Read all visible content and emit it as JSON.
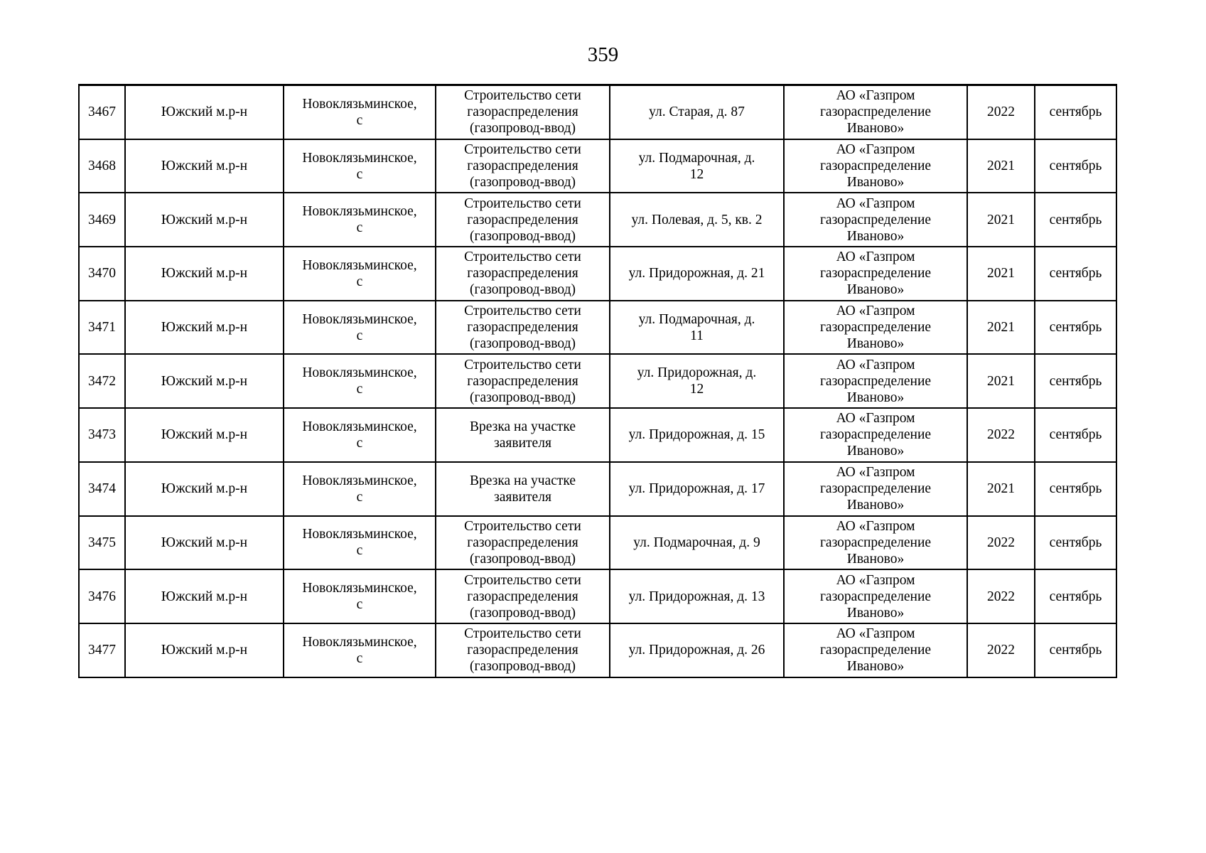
{
  "page": {
    "number": "359"
  },
  "colors": {
    "background": "#ffffff",
    "text": "#000000",
    "table_border": "#000000"
  },
  "table": {
    "rows": [
      {
        "num": "3467",
        "district": "Южский м.р-н",
        "settlement": "Новоклязьминское,\nс",
        "work": "Строительство сети\nгазораспределения\n(газопровод-ввод)",
        "address": "ул. Старая, д. 87",
        "org": "АО «Газпром\nгазораспределение\nИваново»",
        "year": "2022",
        "month": "сентябрь"
      },
      {
        "num": "3468",
        "district": "Южский м.р-н",
        "settlement": "Новоклязьминское,\nс",
        "work": "Строительство сети\nгазораспределения\n(газопровод-ввод)",
        "address": "ул. Подмарочная, д.\n12",
        "org": "АО «Газпром\nгазораспределение\nИваново»",
        "year": "2021",
        "month": "сентябрь"
      },
      {
        "num": "3469",
        "district": "Южский м.р-н",
        "settlement": "Новоклязьминское,\nс",
        "work": "Строительство сети\nгазораспределения\n(газопровод-ввод)",
        "address": "ул. Полевая, д. 5, кв. 2",
        "org": "АО «Газпром\nгазораспределение\nИваново»",
        "year": "2021",
        "month": "сентябрь"
      },
      {
        "num": "3470",
        "district": "Южский м.р-н",
        "settlement": "Новоклязьминское,\nс",
        "work": "Строительство сети\nгазораспределения\n(газопровод-ввод)",
        "address": "ул. Придорожная, д. 21",
        "org": "АО «Газпром\nгазораспределение\nИваново»",
        "year": "2021",
        "month": "сентябрь"
      },
      {
        "num": "3471",
        "district": "Южский м.р-н",
        "settlement": "Новоклязьминское,\nс",
        "work": "Строительство сети\nгазораспределения\n(газопровод-ввод)",
        "address": "ул. Подмарочная, д.\n11",
        "org": "АО «Газпром\nгазораспределение\nИваново»",
        "year": "2021",
        "month": "сентябрь"
      },
      {
        "num": "3472",
        "district": "Южский м.р-н",
        "settlement": "Новоклязьминское,\nс",
        "work": "Строительство сети\nгазораспределения\n(газопровод-ввод)",
        "address": "ул. Придорожная, д.\n12",
        "org": "АО «Газпром\nгазораспределение\nИваново»",
        "year": "2021",
        "month": "сентябрь"
      },
      {
        "num": "3473",
        "district": "Южский м.р-н",
        "settlement": "Новоклязьминское,\nс",
        "work": "Врезка на участке\nзаявителя",
        "address": "ул. Придорожная, д. 15",
        "org": "АО «Газпром\nгазораспределение\nИваново»",
        "year": "2022",
        "month": "сентябрь"
      },
      {
        "num": "3474",
        "district": "Южский м.р-н",
        "settlement": "Новоклязьминское,\nс",
        "work": "Врезка на участке\nзаявителя",
        "address": "ул. Придорожная, д. 17",
        "org": "АО «Газпром\nгазораспределение\nИваново»",
        "year": "2021",
        "month": "сентябрь"
      },
      {
        "num": "3475",
        "district": "Южский м.р-н",
        "settlement": "Новоклязьминское,\nс",
        "work": "Строительство сети\nгазораспределения\n(газопровод-ввод)",
        "address": "ул. Подмарочная, д. 9",
        "org": "АО «Газпром\nгазораспределение\nИваново»",
        "year": "2022",
        "month": "сентябрь"
      },
      {
        "num": "3476",
        "district": "Южский м.р-н",
        "settlement": "Новоклязьминское,\nс",
        "work": "Строительство сети\nгазораспределения\n(газопровод-ввод)",
        "address": "ул. Придорожная, д. 13",
        "org": "АО «Газпром\nгазораспределение\nИваново»",
        "year": "2022",
        "month": "сентябрь"
      },
      {
        "num": "3477",
        "district": "Южский м.р-н",
        "settlement": "Новоклязьминское,\nс",
        "work": "Строительство сети\nгазораспределения\n(газопровод-ввод)",
        "address": "ул. Придорожная, д. 26",
        "org": "АО «Газпром\nгазораспределение\nИваново»",
        "year": "2022",
        "month": "сентябрь"
      }
    ]
  }
}
